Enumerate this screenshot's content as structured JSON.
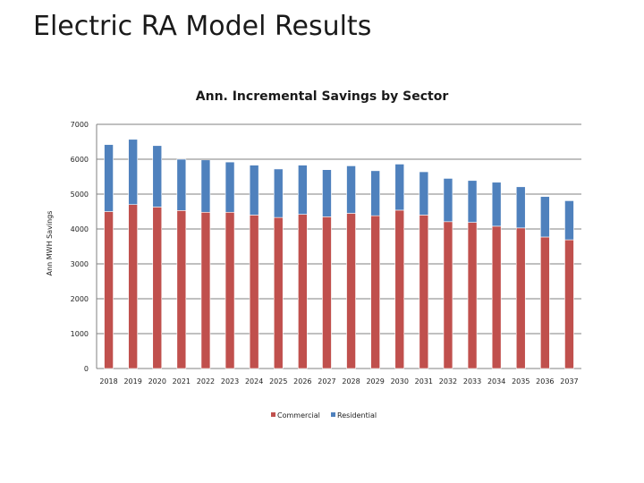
{
  "slide": {
    "title": "Electric RA Model Results"
  },
  "colors": {
    "commercial": "#c0504d",
    "residential": "#4f81bd",
    "grid": "#808080"
  },
  "chart_data": {
    "type": "bar",
    "stacked": true,
    "title": "Ann. Incremental Savings by Sector",
    "xlabel": "",
    "ylabel": "Ann MWH Savings",
    "ylim": [
      0,
      7000
    ],
    "yticks": [
      "0",
      "1000",
      "2000",
      "3000",
      "4000",
      "5000",
      "6000",
      "7000"
    ],
    "grid": true,
    "legend_position": "bottom",
    "categories": [
      "2018",
      "2019",
      "2020",
      "2021",
      "2022",
      "2023",
      "2024",
      "2025",
      "2026",
      "2027",
      "2028",
      "2029",
      "2030",
      "2031",
      "2032",
      "2033",
      "2034",
      "2035",
      "2036",
      "2037"
    ],
    "series": [
      {
        "name": "Commercial",
        "color": "#c0504d",
        "values": [
          4500,
          4700,
          4630,
          4530,
          4480,
          4480,
          4400,
          4330,
          4420,
          4350,
          4450,
          4380,
          4540,
          4400,
          4210,
          4190,
          4080,
          4030,
          3770,
          3690
        ]
      },
      {
        "name": "Residential",
        "color": "#4f81bd",
        "values": [
          1920,
          1870,
          1760,
          1470,
          1500,
          1440,
          1430,
          1390,
          1410,
          1350,
          1360,
          1290,
          1320,
          1240,
          1240,
          1200,
          1260,
          1180,
          1160,
          1120
        ]
      }
    ]
  }
}
